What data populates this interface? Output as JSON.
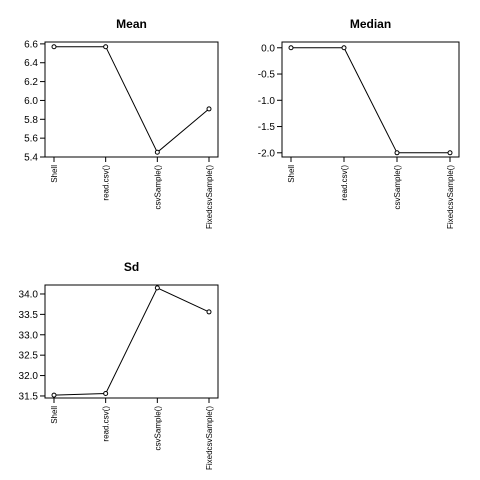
{
  "chart_data": [
    {
      "type": "line",
      "title": "Mean",
      "xlabel": "",
      "ylabel": "",
      "categories": [
        "Shell",
        "read.csv()",
        "csvSample()",
        "FixedcsvSample()"
      ],
      "values": [
        6.57,
        6.57,
        5.45,
        5.91
      ],
      "yticks": [
        5.4,
        5.6,
        5.8,
        6.0,
        6.2,
        6.4,
        6.6
      ],
      "ytick_labels": [
        "5.4",
        "5.6",
        "5.8",
        "6.0",
        "6.2",
        "6.4",
        "6.6"
      ],
      "ylim": [
        5.4,
        6.62
      ],
      "grid": false,
      "marker": "open-circle"
    },
    {
      "type": "line",
      "title": "Median",
      "xlabel": "",
      "ylabel": "",
      "categories": [
        "Shell",
        "read.csv()",
        "csvSample()",
        "FixedcsvSample()"
      ],
      "values": [
        0,
        0,
        -2,
        -2
      ],
      "yticks": [
        -2.0,
        -1.5,
        -1.0,
        -0.5,
        0.0
      ],
      "ytick_labels": [
        "-2.0",
        "-1.5",
        "-1.0",
        "-0.5",
        "0.0"
      ],
      "ylim": [
        -2.08,
        0.11
      ],
      "grid": false,
      "marker": "open-circle"
    },
    {
      "type": "line",
      "title": "Sd",
      "xlabel": "",
      "ylabel": "",
      "categories": [
        "Shell",
        "read.csv()",
        "csvSample()",
        "FixedcsvSample()"
      ],
      "values": [
        31.52,
        31.56,
        34.15,
        33.56
      ],
      "yticks": [
        31.5,
        32.0,
        32.5,
        33.0,
        33.5,
        34.0
      ],
      "ytick_labels": [
        "31.5",
        "32.0",
        "32.5",
        "33.0",
        "33.5",
        "34.0"
      ],
      "ylim": [
        31.45,
        34.22
      ],
      "grid": false,
      "marker": "open-circle"
    }
  ]
}
